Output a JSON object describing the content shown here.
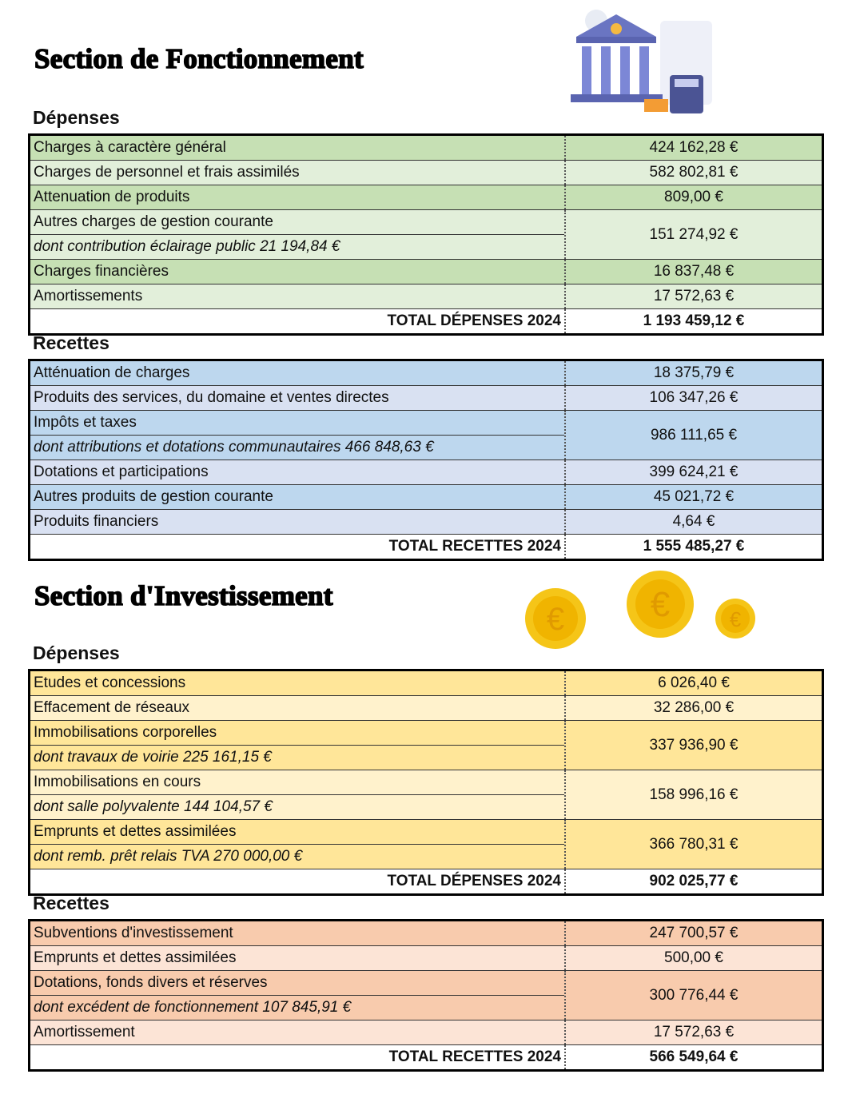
{
  "sections": [
    {
      "title": "Section de Fonctionnement",
      "tables": [
        {
          "heading": "Dépenses",
          "colors": [
            "#c6e0b4",
            "#e2efda"
          ],
          "rows": [
            {
              "label": "Charges à caractère général",
              "amount": "424 162,28 €"
            },
            {
              "label": "Charges de personnel et frais assimilés",
              "amount": "582 802,81 €"
            },
            {
              "label": "Attenuation de produits",
              "amount": "809,00 €"
            },
            {
              "label": "Autres charges de gestion courante",
              "sub": "dont contribution éclairage public 21 194,84 €",
              "amount": "151 274,92 €"
            },
            {
              "label": "Charges financières",
              "amount": "16 837,48 €"
            },
            {
              "label": "Amortissements",
              "amount": "17 572,63 €"
            }
          ],
          "total_label": "TOTAL DÉPENSES 2024",
          "total_amount": "1 193 459,12 €"
        },
        {
          "heading": "Recettes",
          "colors": [
            "#bdd7ee",
            "#d9e1f2"
          ],
          "rows": [
            {
              "label": "Atténuation de charges",
              "amount": "18 375,79 €"
            },
            {
              "label": "Produits des services, du domaine et ventes directes",
              "amount": "106 347,26 €"
            },
            {
              "label": "Impôts et taxes",
              "sub": "dont attributions et dotations communautaires 466 848,63 €",
              "amount": "986 111,65 €"
            },
            {
              "label": "Dotations et participations",
              "amount": "399 624,21 €"
            },
            {
              "label": "Autres produits de gestion courante",
              "amount": "45 021,72 €"
            },
            {
              "label": "Produits financiers",
              "amount": "4,64 €"
            }
          ],
          "total_label": "TOTAL RECETTES 2024",
          "total_amount": "1 555 485,27 €"
        }
      ]
    },
    {
      "title": "Section d'Investissement",
      "tables": [
        {
          "heading": "Dépenses",
          "colors": [
            "#ffe699",
            "#fff2cc"
          ],
          "rows": [
            {
              "label": "Etudes et concessions",
              "amount": "6 026,40 €"
            },
            {
              "label": "Effacement de réseaux",
              "amount": "32 286,00 €"
            },
            {
              "label": "Immobilisations corporelles",
              "sub": "dont travaux de  voirie 225 161,15 €",
              "amount": "337 936,90 €"
            },
            {
              "label": "Immobilisations en cours",
              "sub": "dont salle polyvalente 144 104,57 €",
              "amount": "158 996,16 €"
            },
            {
              "label": "Emprunts et dettes assimilées",
              "sub": "dont remb. prêt relais TVA 270 000,00 €",
              "amount": "366 780,31 €"
            }
          ],
          "total_label": "TOTAL DÉPENSES 2024",
          "total_amount": "902 025,77 €"
        },
        {
          "heading": "Recettes",
          "colors": [
            "#f8cbad",
            "#fce4d6"
          ],
          "rows": [
            {
              "label": "Subventions d'investissement",
              "amount": "247 700,57 €"
            },
            {
              "label": "Emprunts et dettes assimilées",
              "amount": "500,00 €"
            },
            {
              "label": "Dotations, fonds divers et réserves",
              "sub": "dont excédent de fonctionnement 107 845,91 €",
              "amount": "300 776,44 €"
            },
            {
              "label": "Amortissement",
              "amount": "17 572,63 €"
            }
          ],
          "total_label": "TOTAL RECETTES 2024",
          "total_amount": "566 549,64 €"
        }
      ]
    }
  ]
}
